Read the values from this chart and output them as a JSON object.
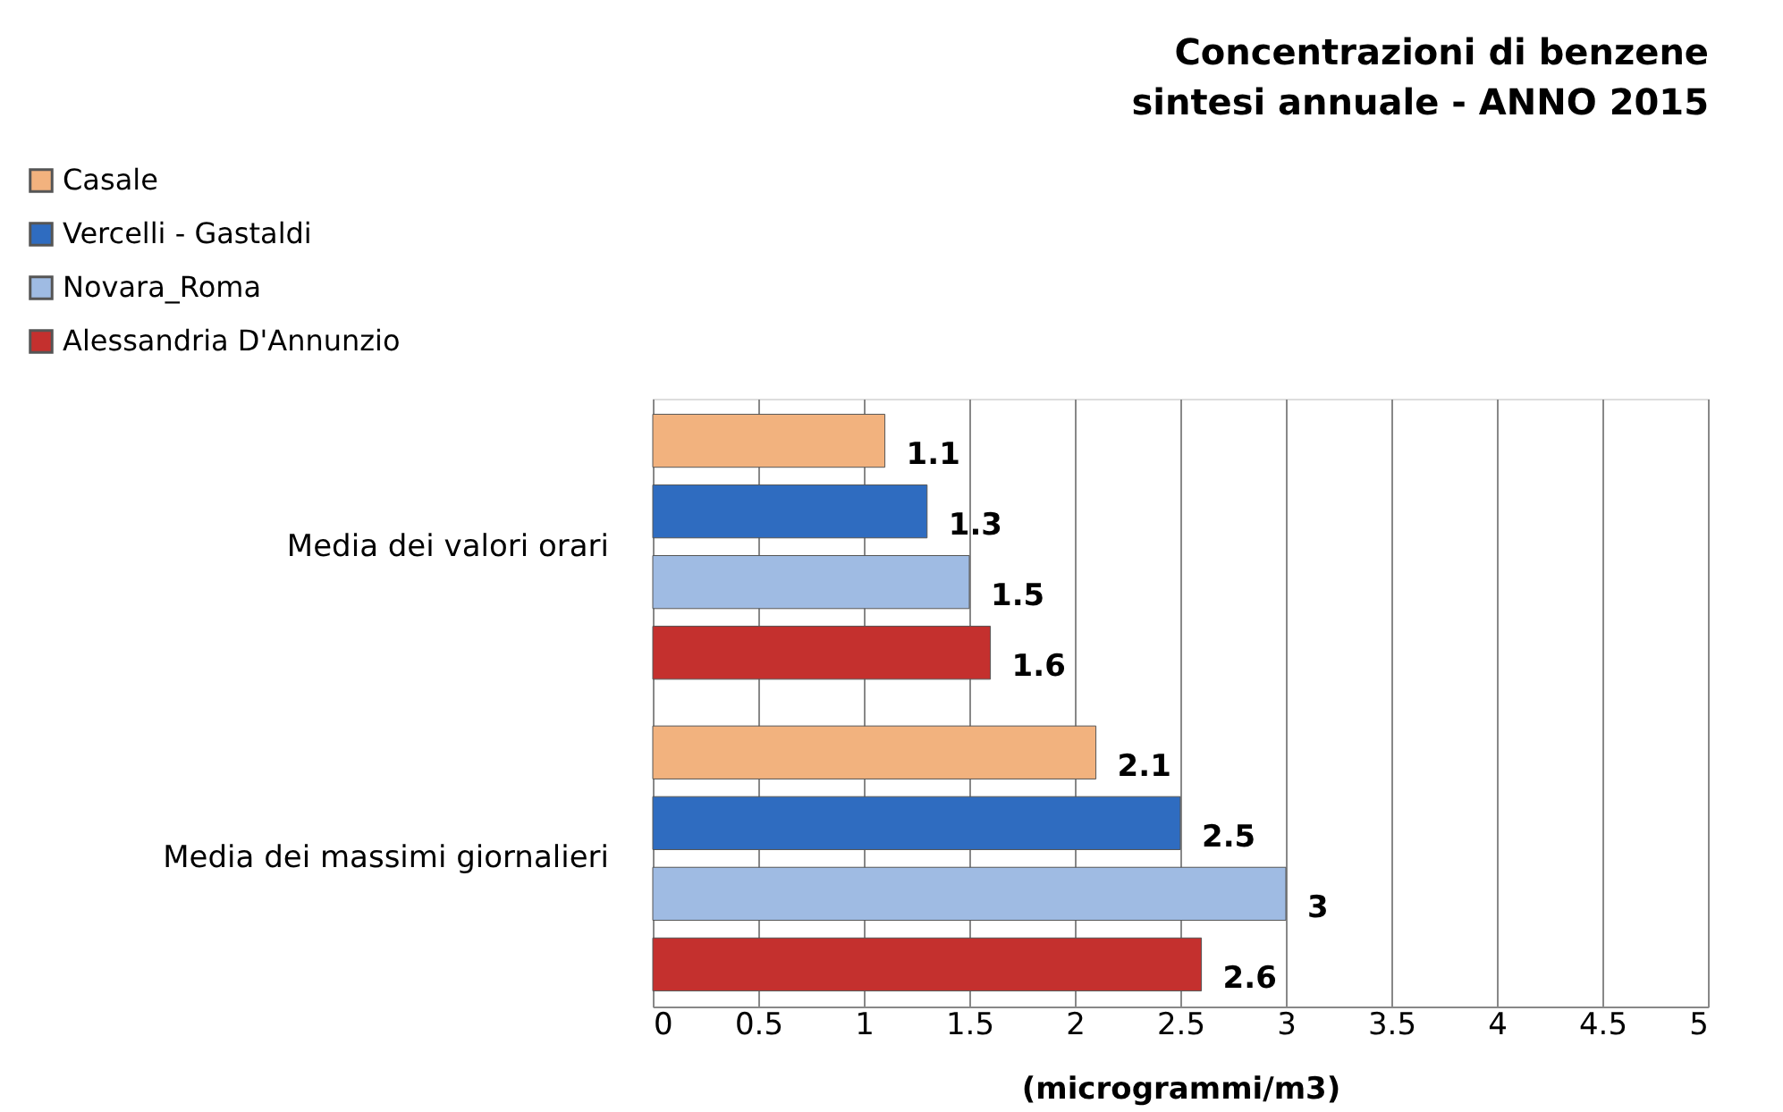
{
  "chart_data": {
    "type": "bar",
    "orientation": "horizontal",
    "title": "Concentrazioni di benzene\nsintesi annuale - ANNO 2015",
    "xlabel": "(microgrammi/m3)",
    "categories": [
      "Media dei valori orari",
      "Media dei massimi giornalieri"
    ],
    "series": [
      {
        "name": "Casale",
        "color": "#f2b27e",
        "values": [
          1.1,
          2.1
        ]
      },
      {
        "name": "Vercelli - Gastaldi",
        "color": "#2f6cc0",
        "values": [
          1.3,
          2.5
        ]
      },
      {
        "name": "Novara_Roma",
        "color": "#9fbbe3",
        "values": [
          1.5,
          3
        ]
      },
      {
        "name": "Alessandria D'Annunzio",
        "color": "#c4302e",
        "values": [
          1.6,
          2.6
        ]
      }
    ],
    "xlim": [
      0,
      5
    ],
    "xticks": [
      0,
      0.5,
      1,
      1.5,
      2,
      2.5,
      3,
      3.5,
      4,
      4.5,
      5
    ],
    "grid": "x",
    "legend": "top left",
    "data_labels": true
  }
}
